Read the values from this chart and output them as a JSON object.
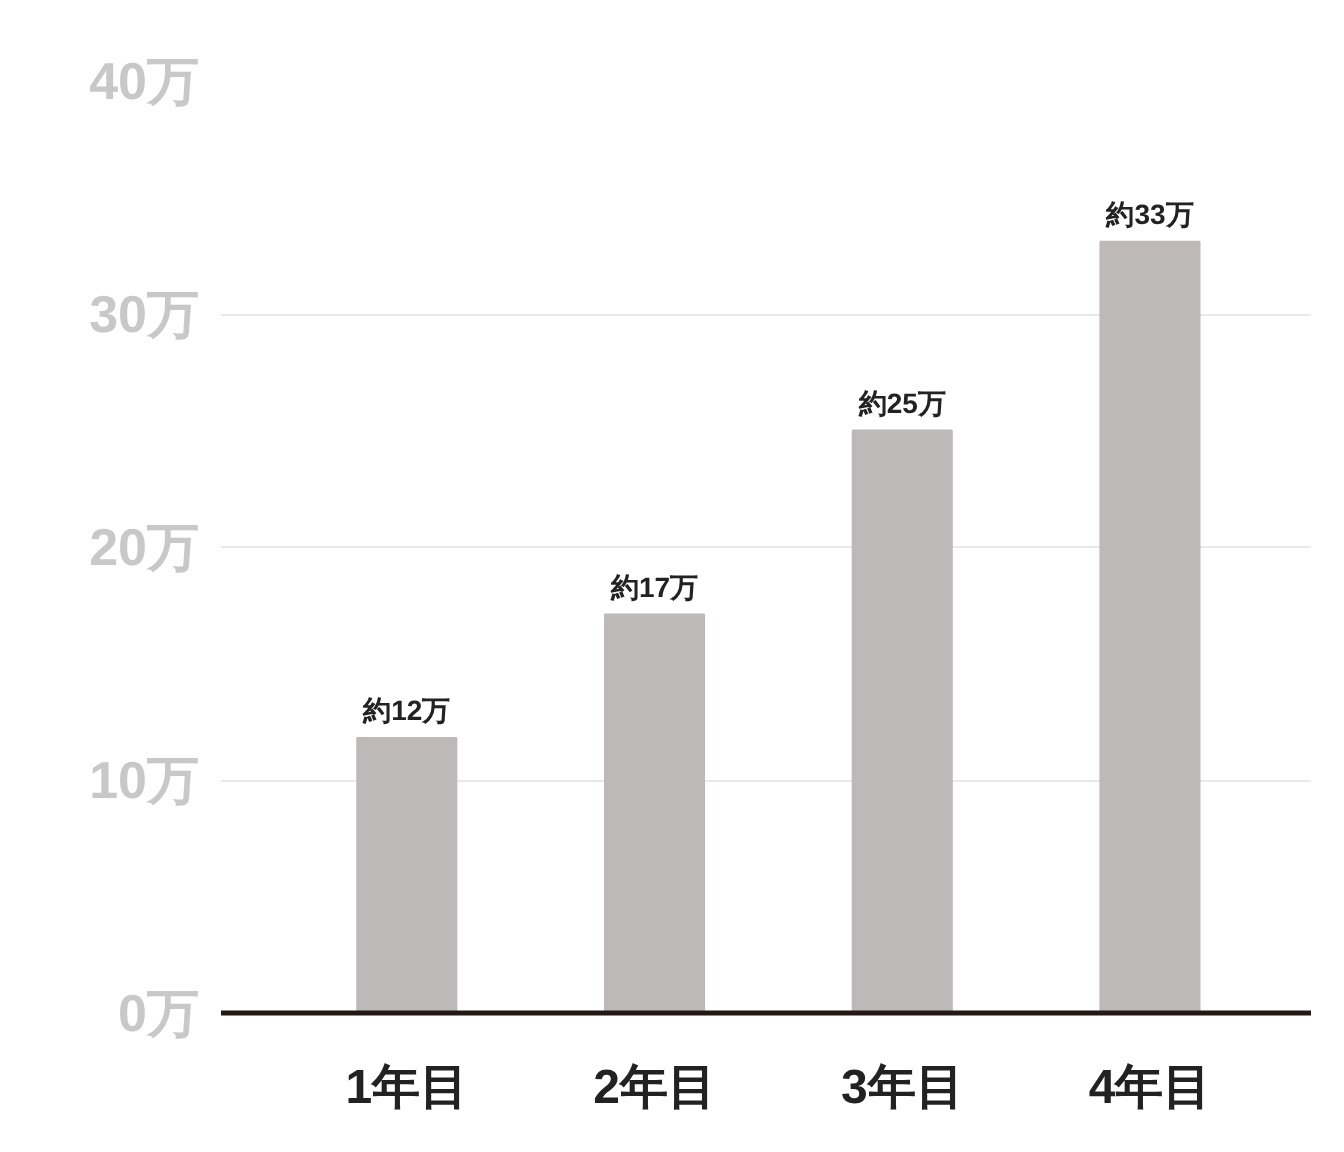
{
  "chart_data": {
    "type": "bar",
    "categories": [
      "1年目",
      "2年目",
      "3年目",
      "4年目"
    ],
    "values": [
      11.8,
      17.1,
      25.0,
      33.1
    ],
    "value_labels": [
      "約12万",
      "約17万",
      "約25万",
      "約33万"
    ],
    "color": "#bcb9b8",
    "ylim": [
      0,
      40
    ],
    "yticks": [
      {
        "value": 0,
        "label": "0万"
      },
      {
        "value": 10,
        "label": "10万"
      },
      {
        "value": 20,
        "label": "20万"
      },
      {
        "value": 30,
        "label": "30万"
      },
      {
        "value": 40,
        "label": "40万"
      }
    ],
    "grid": "y"
  }
}
